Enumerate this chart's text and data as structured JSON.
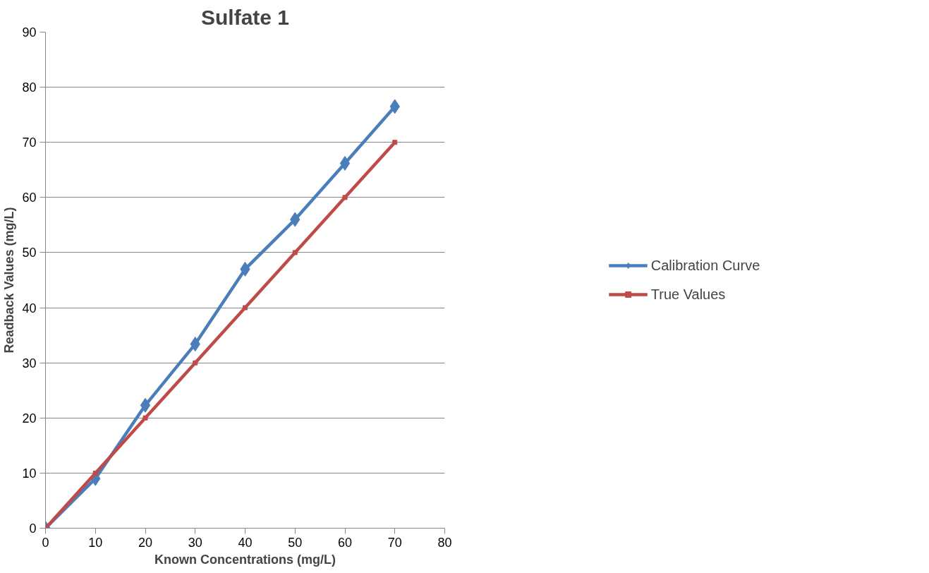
{
  "chart_data": {
    "type": "line",
    "title": "Sulfate 1",
    "xlabel": "Known Concentrations (mg/L)",
    "ylabel": "Readback Values (mg/L)",
    "x": [
      0,
      10,
      20,
      30,
      40,
      50,
      60,
      70
    ],
    "series": [
      {
        "name": "Calibration Curve",
        "color": "#4a7ebb",
        "marker": "diamond",
        "values": [
          0,
          9,
          22.3,
          33.4,
          47,
          56,
          66.2,
          76.5
        ]
      },
      {
        "name": "True Values",
        "color": "#be4b48",
        "marker": "square",
        "values": [
          0,
          10,
          20,
          30,
          40,
          50,
          60,
          70
        ]
      }
    ],
    "xlim": [
      0,
      80
    ],
    "xticks": [
      0,
      10,
      20,
      30,
      40,
      50,
      60,
      70,
      80
    ],
    "ylim": [
      0,
      90
    ],
    "yticks": [
      0,
      10,
      20,
      30,
      40,
      50,
      60,
      70,
      80,
      90
    ],
    "grid": "y",
    "legend": "right",
    "line_style": "solid"
  }
}
